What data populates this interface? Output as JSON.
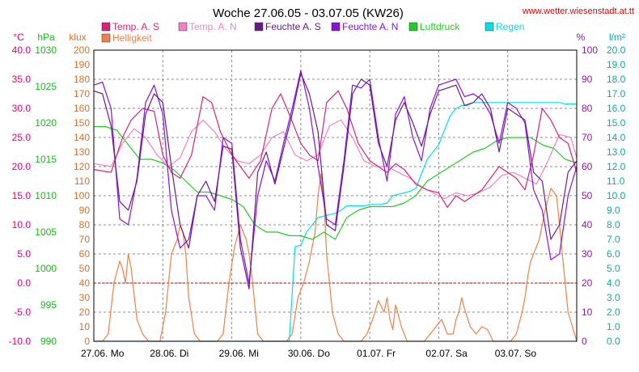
{
  "chart_data": {
    "type": "line",
    "title": "Woche 27.06.05 - 03.07.05 (KW26)",
    "source": "www.wetter.wiesenstadt.at.tt",
    "x_labels": [
      "27.06.  Mo",
      "28.06.  Di",
      "29.06.  Mi",
      "30.06.  Do",
      "01.07.  Fr",
      "02.07.  Sa",
      "03.07.  So"
    ],
    "x_range_hours": [
      0,
      168
    ],
    "grid": true,
    "frost_line_celsius": 0,
    "axes": [
      {
        "unit": "°C",
        "color": "#e0007a",
        "min": -10,
        "max": 40,
        "ticks": [
          "-10.0",
          "-5.0",
          "0.0",
          "5.0",
          "10.0",
          "15.0",
          "20.0",
          "25.0",
          "30.0",
          "35.0",
          "40.0"
        ]
      },
      {
        "unit": "hPa",
        "color": "#18b818",
        "min": 990,
        "max": 1030,
        "ticks": [
          "990",
          "995",
          "1000",
          "1005",
          "1010",
          "1015",
          "1020",
          "1025",
          "1030"
        ]
      },
      {
        "unit": "klux",
        "color": "#e07020",
        "min": 0,
        "max": 200,
        "ticks": [
          "0",
          "10",
          "20",
          "30",
          "40",
          "50",
          "60",
          "70",
          "80",
          "90",
          "100",
          "110",
          "120",
          "130",
          "140",
          "150",
          "160",
          "170",
          "180",
          "190",
          "200"
        ]
      },
      {
        "unit": "%",
        "color": "#8a1c9c",
        "min": 0,
        "max": 100,
        "ticks": [
          "0",
          "10",
          "20",
          "30",
          "40",
          "50",
          "60",
          "70",
          "80",
          "90",
          "100"
        ]
      },
      {
        "unit": "l/m²",
        "color": "#00b0b0",
        "min": 0,
        "max": 20,
        "ticks": [
          "0.0",
          "1.0",
          "2.0",
          "3.0",
          "4.0",
          "5.0",
          "6.0",
          "7.0",
          "8.0",
          "9.0",
          "10.0",
          "11.0",
          "12.0",
          "13.0",
          "14.0",
          "15.0",
          "16.0",
          "17.0",
          "18.0",
          "19.0",
          "20.0"
        ]
      }
    ],
    "legend": [
      {
        "name": "Temp. A. S",
        "color": "#d6227a"
      },
      {
        "name": "Temp. A. N",
        "color": "#f080c8"
      },
      {
        "name": "Feuchte A. S",
        "color": "#6a1a86"
      },
      {
        "name": "Feuchte A. N",
        "color": "#8a10e0"
      },
      {
        "name": "Luftdruck",
        "color": "#22cc22"
      },
      {
        "name": "Regen",
        "color": "#00e0e8"
      },
      {
        "name": "Helligkeit",
        "color": "#f08048"
      }
    ],
    "series": [
      {
        "name": "Temp. A. S",
        "axis": "°C",
        "color": "#d6227a",
        "x": [
          0,
          6,
          10,
          13,
          17,
          21,
          24,
          27,
          30,
          34,
          38,
          41,
          44,
          48,
          51,
          54,
          58,
          62,
          65,
          68,
          72,
          75,
          78,
          81,
          85,
          88,
          92,
          96,
          99,
          102,
          105,
          108,
          112,
          116,
          120,
          123,
          126,
          129,
          132,
          135,
          138,
          141,
          144,
          147,
          150,
          153,
          156,
          159,
          162,
          165,
          168
        ],
        "y": [
          19.5,
          19,
          25,
          28,
          30,
          29.5,
          22,
          19,
          18,
          22,
          32,
          31,
          26,
          22,
          20,
          18,
          21,
          30,
          32.5,
          29,
          24,
          22,
          21,
          31,
          33,
          30,
          24,
          21,
          20,
          19,
          20.5,
          19.5,
          17,
          16,
          15.5,
          13,
          15,
          14,
          15,
          16,
          18,
          20,
          19,
          18,
          16,
          22,
          30,
          28,
          25,
          24,
          19
        ]
      },
      {
        "name": "Temp. A. N",
        "axis": "°C",
        "color": "#f080c8",
        "x": [
          0,
          6,
          10,
          14,
          18,
          22,
          26,
          30,
          34,
          38,
          42,
          46,
          50,
          54,
          58,
          62,
          66,
          70,
          74,
          78,
          82,
          86,
          90,
          94,
          98,
          102,
          106,
          110,
          114,
          118,
          122,
          126,
          130,
          134,
          138,
          142,
          146,
          150,
          154,
          158,
          162,
          166,
          168
        ],
        "y": [
          20.5,
          20,
          24,
          26.5,
          25,
          22,
          20,
          21.5,
          26,
          28,
          26,
          23,
          21,
          20.5,
          22,
          25,
          26,
          22,
          21,
          22,
          27,
          28,
          25,
          21,
          20,
          20,
          19,
          18,
          16.5,
          15.5,
          14.5,
          15.5,
          15,
          15.5,
          16.5,
          18.5,
          19,
          18,
          17,
          21,
          25.5,
          25,
          21.5
        ]
      },
      {
        "name": "Feuchte A. S",
        "axis": "%",
        "color": "#6a1a86",
        "x": [
          0,
          3,
          6,
          9,
          12,
          15,
          18,
          21,
          24,
          27,
          30,
          33,
          36,
          39,
          42,
          45,
          48,
          51,
          54,
          57,
          60,
          63,
          66,
          69,
          72,
          75,
          78,
          81,
          84,
          87,
          90,
          93,
          96,
          99,
          102,
          105,
          108,
          111,
          114,
          117,
          120,
          123,
          126,
          129,
          132,
          135,
          138,
          141,
          144,
          147,
          150,
          153,
          156,
          159,
          162,
          165,
          168
        ],
        "y": [
          86,
          85,
          74,
          48,
          45,
          55,
          78,
          85,
          82,
          60,
          40,
          32,
          50,
          55,
          48,
          67,
          66,
          32,
          18,
          58,
          65,
          54,
          66,
          78,
          92,
          85,
          72,
          40,
          38,
          60,
          85,
          90,
          88,
          68,
          60,
          76,
          82,
          75,
          67,
          78,
          86,
          87,
          88,
          81,
          82,
          85,
          80,
          65,
          80,
          78,
          76,
          58,
          55,
          35,
          40,
          58,
          62
        ]
      },
      {
        "name": "Feuchte A. N",
        "axis": "%",
        "color": "#8a10e0",
        "x": [
          0,
          3,
          6,
          9,
          12,
          15,
          18,
          21,
          24,
          27,
          30,
          33,
          36,
          39,
          42,
          45,
          48,
          51,
          54,
          57,
          60,
          63,
          66,
          69,
          72,
          75,
          78,
          81,
          84,
          87,
          90,
          93,
          96,
          99,
          102,
          105,
          108,
          111,
          114,
          117,
          120,
          123,
          126,
          129,
          132,
          135,
          138,
          141,
          144,
          147,
          150,
          153,
          156,
          159,
          162,
          165,
          168
        ],
        "y": [
          88,
          89,
          80,
          42,
          40,
          56,
          82,
          88,
          78,
          45,
          32,
          35,
          50,
          50,
          45,
          70,
          68,
          35,
          20,
          50,
          62,
          55,
          68,
          80,
          93,
          80,
          60,
          42,
          40,
          62,
          88,
          87,
          90,
          70,
          55,
          78,
          84,
          70,
          62,
          80,
          88,
          89,
          90,
          84,
          85,
          83,
          78,
          68,
          82,
          80,
          75,
          52,
          45,
          28,
          30,
          50,
          60
        ]
      },
      {
        "name": "Luftdruck",
        "axis": "hPa",
        "color": "#22cc22",
        "x": [
          0,
          4,
          8,
          12,
          16,
          20,
          24,
          28,
          32,
          36,
          40,
          44,
          48,
          52,
          56,
          60,
          64,
          68,
          72,
          76,
          80,
          84,
          88,
          92,
          96,
          100,
          104,
          108,
          112,
          116,
          120,
          124,
          128,
          132,
          136,
          140,
          144,
          148,
          152,
          156,
          160,
          164,
          168
        ],
        "y": [
          1019.5,
          1019.5,
          1019,
          1017,
          1015,
          1015,
          1014.5,
          1013.5,
          1012,
          1010.5,
          1010.5,
          1010,
          1009.5,
          1008.5,
          1006,
          1005,
          1005,
          1004.5,
          1004.5,
          1004,
          1005,
          1004,
          1007,
          1008,
          1008.5,
          1008.5,
          1008.5,
          1009,
          1010,
          1012,
          1013,
          1014,
          1015,
          1016,
          1016.5,
          1017.5,
          1018,
          1018,
          1018,
          1017,
          1016.5,
          1015,
          1014.5
        ]
      },
      {
        "name": "Regen",
        "axis": "l/m²",
        "color": "#00e0e8",
        "x": [
          0,
          60,
          62,
          64,
          66,
          68,
          70,
          72,
          74,
          76,
          78,
          80,
          82,
          84,
          86,
          88,
          90,
          92,
          94,
          96,
          98,
          100,
          102,
          104,
          106,
          108,
          110,
          112,
          114,
          116,
          118,
          120,
          122,
          124,
          126,
          128,
          130,
          132,
          134,
          136,
          138,
          140,
          142,
          144,
          146,
          148,
          150,
          152,
          154,
          156,
          158,
          160,
          162,
          164,
          166,
          168
        ],
        "y": [
          0,
          0,
          0,
          0,
          0,
          0,
          6.5,
          6.6,
          7.5,
          8.0,
          8.5,
          8.6,
          8.7,
          8.8,
          9.0,
          9.3,
          9.3,
          9.3,
          9.3,
          9.4,
          9.4,
          9.4,
          9.5,
          10.0,
          10.1,
          10.2,
          10.3,
          10.5,
          11.5,
          12.5,
          13.0,
          13.5,
          14.5,
          15.5,
          16.0,
          16.2,
          16.2,
          16.4,
          16.4,
          16.4,
          16.4,
          16.4,
          16.4,
          16.4,
          16.4,
          16.4,
          16.4,
          16.4,
          16.4,
          16.4,
          16.4,
          16.4,
          16.4,
          16.3,
          16.3,
          16.3
        ]
      },
      {
        "name": "Helligkeit",
        "axis": "klux",
        "color": "#f08048",
        "x": [
          0,
          3,
          5,
          7,
          9,
          10,
          11,
          12,
          13,
          15,
          17,
          19,
          21,
          23,
          25,
          27,
          29,
          30,
          31,
          32,
          33,
          35,
          37,
          39,
          41,
          43,
          45,
          47,
          49,
          51,
          53,
          54,
          55,
          56,
          57,
          59,
          61,
          63,
          65,
          67,
          69,
          71,
          73,
          75,
          77,
          78,
          79,
          80,
          81,
          83,
          85,
          87,
          89,
          91,
          93,
          95,
          97,
          99,
          101,
          102,
          103,
          104,
          105,
          107,
          109,
          111,
          113,
          115,
          117,
          119,
          121,
          123,
          125,
          126,
          127,
          128,
          129,
          131,
          133,
          135,
          137,
          139,
          141,
          143,
          145,
          147,
          149,
          150,
          151,
          152,
          153,
          155,
          157,
          159,
          161,
          163,
          165,
          168
        ],
        "y": [
          0,
          0,
          5,
          40,
          55,
          50,
          40,
          60,
          50,
          15,
          5,
          0,
          0,
          0,
          20,
          60,
          70,
          80,
          75,
          60,
          30,
          5,
          0,
          0,
          0,
          0,
          5,
          40,
          65,
          80,
          70,
          60,
          45,
          25,
          5,
          0,
          0,
          0,
          0,
          0,
          5,
          30,
          40,
          55,
          75,
          100,
          115,
          98,
          60,
          20,
          5,
          0,
          0,
          0,
          0,
          5,
          15,
          28,
          20,
          30,
          15,
          8,
          25,
          10,
          0,
          0,
          0,
          0,
          5,
          10,
          15,
          5,
          5,
          15,
          20,
          30,
          22,
          10,
          5,
          10,
          8,
          0,
          0,
          0,
          0,
          5,
          20,
          30,
          45,
          55,
          60,
          70,
          90,
          105,
          100,
          60,
          20,
          0
        ]
      }
    ]
  }
}
